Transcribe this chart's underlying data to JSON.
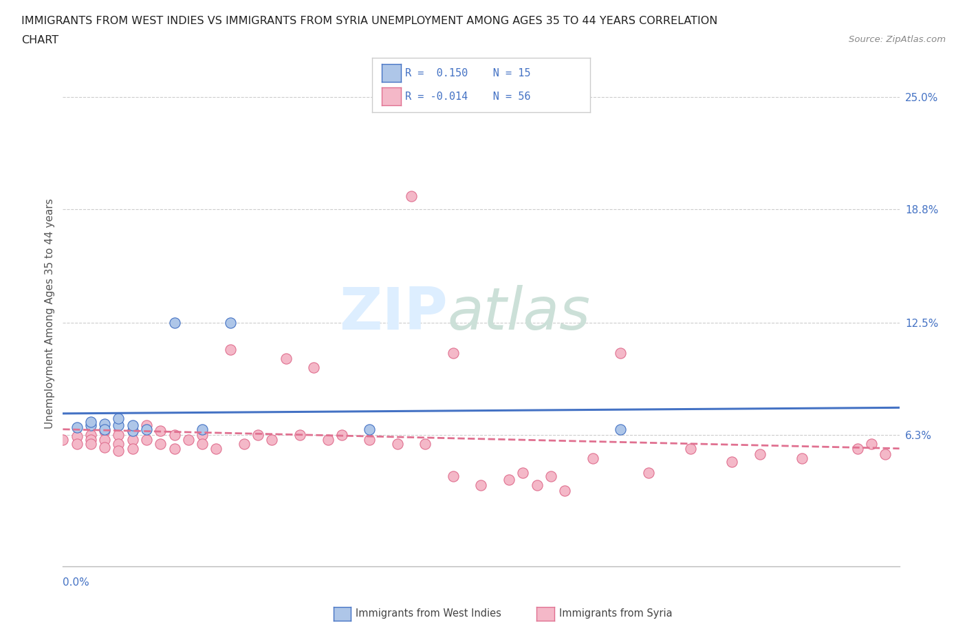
{
  "title_line1": "IMMIGRANTS FROM WEST INDIES VS IMMIGRANTS FROM SYRIA UNEMPLOYMENT AMONG AGES 35 TO 44 YEARS CORRELATION",
  "title_line2": "CHART",
  "source": "Source: ZipAtlas.com",
  "ylabel": "Unemployment Among Ages 35 to 44 years",
  "ytick_labels": [
    "6.3%",
    "12.5%",
    "18.8%",
    "25.0%"
  ],
  "ytick_values": [
    0.063,
    0.125,
    0.188,
    0.25
  ],
  "xlim": [
    0.0,
    0.06
  ],
  "ylim": [
    -0.01,
    0.27
  ],
  "color_west_indies_fill": "#aec6e8",
  "color_west_indies_edge": "#4472c4",
  "color_syria_fill": "#f4b8c8",
  "color_syria_edge": "#e07090",
  "color_wi_line": "#4472c4",
  "color_sy_line": "#e07090",
  "color_axis_labels": "#4472c4",
  "wi_x": [
    0.001,
    0.002,
    0.002,
    0.003,
    0.003,
    0.004,
    0.004,
    0.005,
    0.005,
    0.006,
    0.008,
    0.01,
    0.012,
    0.022,
    0.04
  ],
  "wi_y": [
    0.067,
    0.068,
    0.07,
    0.069,
    0.066,
    0.068,
    0.072,
    0.065,
    0.068,
    0.066,
    0.125,
    0.066,
    0.125,
    0.066,
    0.066
  ],
  "sy_x": [
    0.0,
    0.001,
    0.001,
    0.002,
    0.002,
    0.002,
    0.003,
    0.003,
    0.003,
    0.004,
    0.004,
    0.004,
    0.005,
    0.005,
    0.005,
    0.006,
    0.006,
    0.007,
    0.007,
    0.008,
    0.008,
    0.009,
    0.01,
    0.01,
    0.011,
    0.012,
    0.013,
    0.014,
    0.015,
    0.016,
    0.017,
    0.018,
    0.019,
    0.02,
    0.022,
    0.024,
    0.025,
    0.026,
    0.028,
    0.028,
    0.03,
    0.032,
    0.033,
    0.034,
    0.035,
    0.036,
    0.038,
    0.04,
    0.042,
    0.045,
    0.048,
    0.05,
    0.053,
    0.057,
    0.058,
    0.059
  ],
  "sy_y": [
    0.06,
    0.062,
    0.058,
    0.063,
    0.06,
    0.058,
    0.065,
    0.06,
    0.056,
    0.063,
    0.058,
    0.054,
    0.065,
    0.06,
    0.055,
    0.068,
    0.06,
    0.065,
    0.058,
    0.063,
    0.055,
    0.06,
    0.063,
    0.058,
    0.055,
    0.11,
    0.058,
    0.063,
    0.06,
    0.105,
    0.063,
    0.1,
    0.06,
    0.063,
    0.06,
    0.058,
    0.195,
    0.058,
    0.04,
    0.108,
    0.035,
    0.038,
    0.042,
    0.035,
    0.04,
    0.032,
    0.05,
    0.108,
    0.042,
    0.055,
    0.048,
    0.052,
    0.05,
    0.055,
    0.058,
    0.052
  ]
}
